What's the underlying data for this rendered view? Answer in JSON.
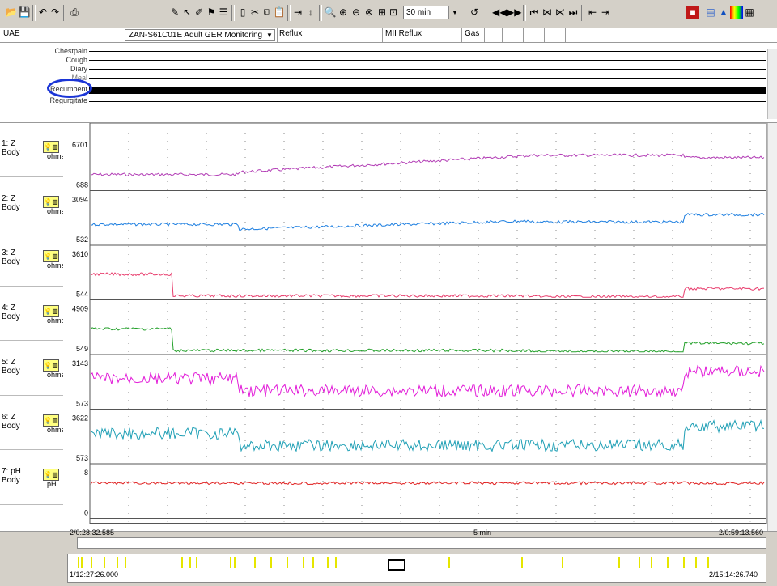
{
  "toolbar": {
    "time_window": "30 min",
    "icons": [
      "open-icon",
      "save-icon",
      "undo-icon",
      "redo-icon",
      "print-icon",
      "edit-icon",
      "pointer-icon",
      "pen-icon",
      "marker-icon",
      "list-icon",
      "select-icon",
      "cut-icon",
      "copy-icon",
      "paste-icon",
      "event-icon",
      "fit-icon",
      "zoom-in-icon",
      "zoom-out-icon",
      "zoom-x-icon",
      "zoom-y-icon",
      "zoom-box-icon",
      "measure-icon",
      "rewind-icon",
      "forward-icon",
      "prev-event-icon",
      "event-a-icon",
      "event-b-icon",
      "next-event-icon",
      "start-icon",
      "end-icon",
      "report-icon",
      "graph-icon",
      "warning-icon",
      "color-icon",
      "table-icon"
    ]
  },
  "header": {
    "patient": "UAE",
    "study": "ZAN-S61C01E  Adult GER Monitoring",
    "col1": "Reflux",
    "col2": "MII Reflux",
    "col3": "Gas"
  },
  "events": {
    "labels": [
      "Chestpain",
      "Cough",
      "Diary",
      "Meal",
      "Recumbent",
      "Regurgitate"
    ]
  },
  "channels": [
    {
      "name": "1: Z",
      "site": "Body",
      "unit": "ohms",
      "max": "6701",
      "min": "688",
      "color": "#b23cb5"
    },
    {
      "name": "2: Z",
      "site": "Body",
      "unit": "ohms",
      "max": "3094",
      "min": "532",
      "color": "#1c7ee0"
    },
    {
      "name": "3: Z",
      "site": "Body",
      "unit": "ohms",
      "max": "3610",
      "min": "544",
      "color": "#e83a6b"
    },
    {
      "name": "4: Z",
      "site": "Body",
      "unit": "ohms",
      "max": "4909",
      "min": "549",
      "color": "#23a02a"
    },
    {
      "name": "5: Z",
      "site": "Body",
      "unit": "ohms",
      "max": "3143",
      "min": "573",
      "color": "#e21ad8"
    },
    {
      "name": "6: Z",
      "site": "Body",
      "unit": "ohms",
      "max": "3622",
      "min": "573",
      "color": "#1e9fb5"
    },
    {
      "name": "7: pH",
      "site": "Body",
      "unit": "pH",
      "max": "8",
      "min": "0",
      "color": "#e02020"
    }
  ],
  "timeline": {
    "start": "2/0:28:32.585",
    "end": "2/0:59:13.560",
    "scale": "5 min",
    "overview_start": "1/12:27:26.000",
    "overview_end": "2/15:14:26.740"
  }
}
